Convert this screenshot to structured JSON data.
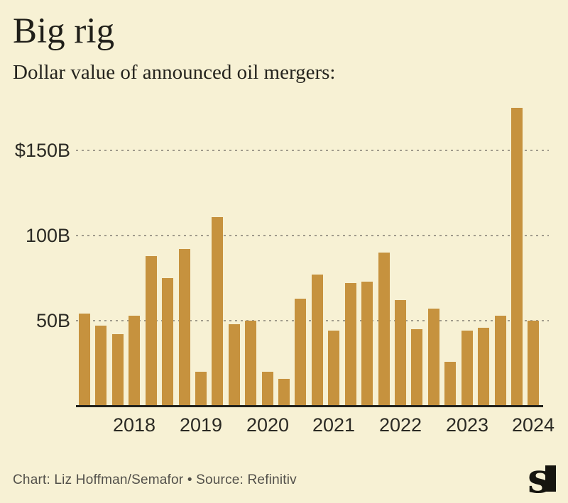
{
  "header": {
    "title": "Big rig",
    "subtitle": "Dollar value of announced oil mergers:"
  },
  "footer": {
    "credit": "Chart: Liz Hoffman/Semafor • Source: Refinitiv",
    "logo": "semafor-logo"
  },
  "colors": {
    "background": "#f7f1d4",
    "bar": "#c6923e",
    "grid": "#a09b8c",
    "axis": "#22211b",
    "text": "#201f19",
    "muted": "#52504a",
    "logo": "#16150f"
  },
  "chart_data": {
    "type": "bar",
    "title": "Big rig",
    "subtitle": "Dollar value of announced oil mergers:",
    "unit": "billions of US dollars",
    "x": [
      "2017-Q2",
      "2017-Q3",
      "2017-Q4",
      "2018-Q1",
      "2018-Q2",
      "2018-Q3",
      "2018-Q4",
      "2019-Q1",
      "2019-Q2",
      "2019-Q3",
      "2019-Q4",
      "2020-Q1",
      "2020-Q2",
      "2020-Q3",
      "2020-Q4",
      "2021-Q1",
      "2021-Q2",
      "2021-Q3",
      "2021-Q4",
      "2022-Q1",
      "2022-Q2",
      "2022-Q3",
      "2022-Q4",
      "2023-Q1",
      "2023-Q2",
      "2023-Q3",
      "2023-Q4",
      "2024-Q1"
    ],
    "values": [
      54,
      47,
      42,
      53,
      88,
      75,
      92,
      20,
      111,
      48,
      50,
      20,
      16,
      63,
      77,
      44,
      72,
      73,
      90,
      62,
      45,
      57,
      26,
      44,
      46,
      53,
      175,
      50
    ],
    "y_ticks": [
      {
        "value": 150,
        "label": "$150B"
      },
      {
        "value": 100,
        "label": "100B"
      },
      {
        "value": 50,
        "label": "50B"
      }
    ],
    "x_ticks": [
      {
        "label": "2018",
        "bar_index": 3
      },
      {
        "label": "2019",
        "bar_index": 7
      },
      {
        "label": "2020",
        "bar_index": 11
      },
      {
        "label": "2021",
        "bar_index": 15
      },
      {
        "label": "2022",
        "bar_index": 19
      },
      {
        "label": "2023",
        "bar_index": 23
      },
      {
        "label": "2024",
        "bar_index": 27
      }
    ],
    "ylim": [
      0,
      180
    ],
    "grid": "horizontal dashed",
    "legend": "none"
  }
}
